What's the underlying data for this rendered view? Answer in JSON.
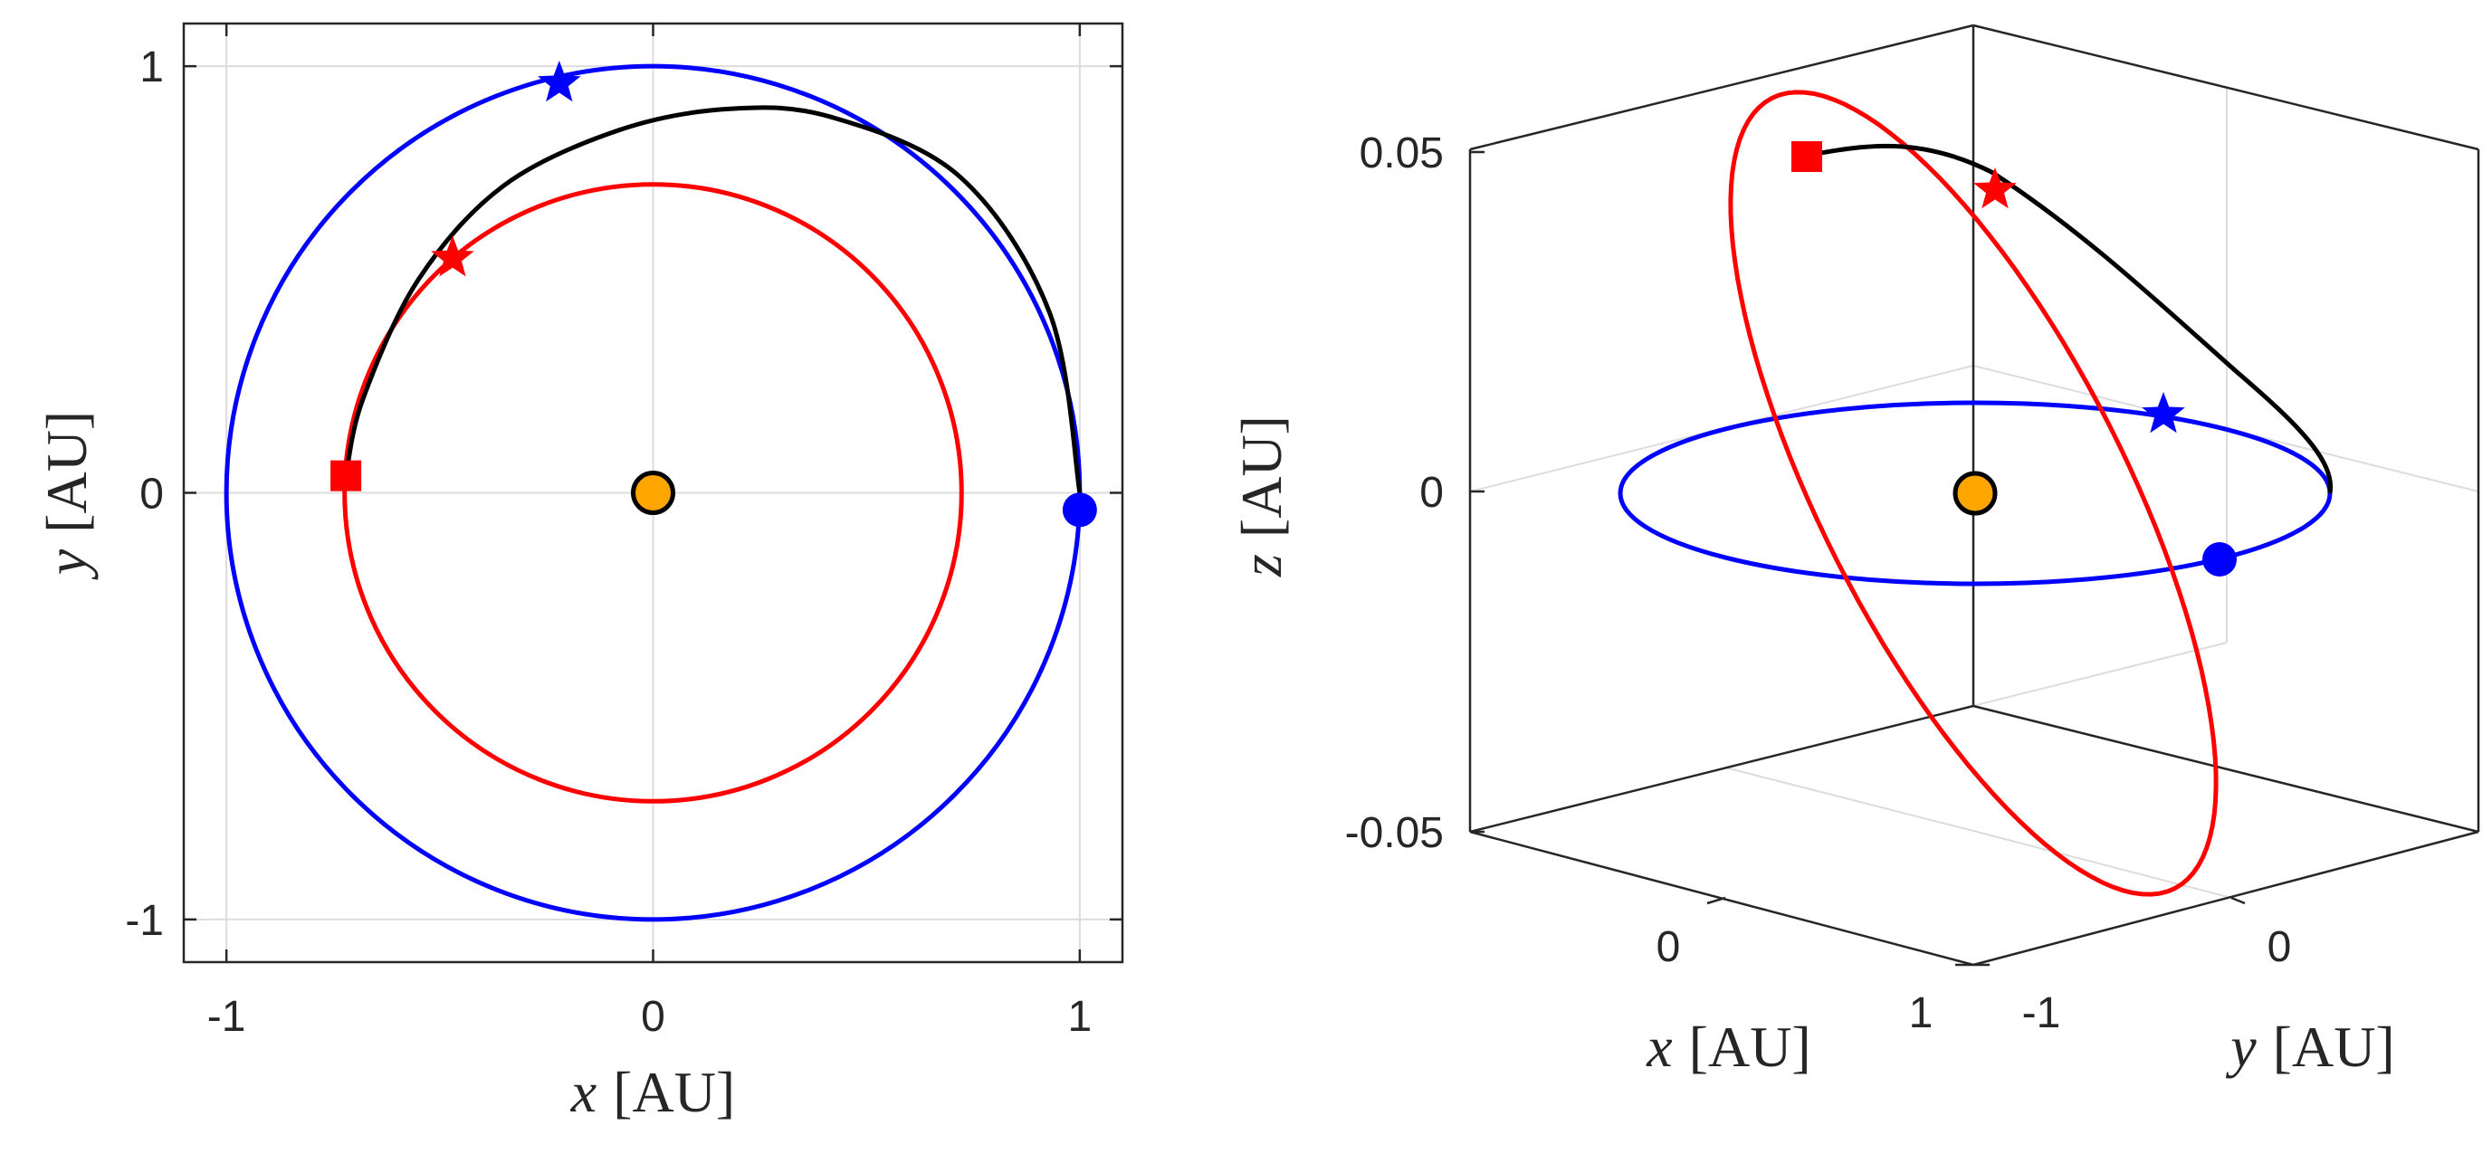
{
  "colors": {
    "earth": "#0000ff",
    "target": "#ff0000",
    "transfer": "#000000",
    "sun": "#ffa500"
  },
  "chart_data": [
    {
      "type": "line",
      "view": "2d-xy",
      "xlabel": {
        "var": "x",
        "unit": "[AU]"
      },
      "ylabel": {
        "var": "y",
        "unit": "[AU]"
      },
      "xlim": [
        -1.1,
        1.1
      ],
      "ylim": [
        -1.1,
        1.1
      ],
      "xticks": [
        {
          "value": -1,
          "label": "-1"
        },
        {
          "value": 0,
          "label": "0"
        },
        {
          "value": 1,
          "label": "1"
        }
      ],
      "yticks": [
        {
          "value": -1,
          "label": "-1"
        },
        {
          "value": 0,
          "label": "0"
        },
        {
          "value": 1,
          "label": "1"
        }
      ],
      "grid": true,
      "series": [
        {
          "role": "blue-orbit",
          "color": "#0000ff",
          "shape": "circle",
          "center": [
            0,
            0
          ],
          "radius": 1.0
        },
        {
          "role": "red-orbit",
          "color": "#ff0000",
          "shape": "circle",
          "center": [
            0,
            0
          ],
          "radius": 0.723
        },
        {
          "role": "transfer-arc",
          "color": "#000000",
          "points": [
            [
              1.0,
              0.0
            ],
            [
              0.93,
              0.42
            ],
            [
              0.72,
              0.74
            ],
            [
              0.42,
              0.88
            ],
            [
              0.18,
              0.9
            ],
            [
              -0.08,
              0.85
            ],
            [
              -0.35,
              0.72
            ],
            [
              -0.55,
              0.5
            ],
            [
              -0.68,
              0.22
            ],
            [
              -0.72,
              0.04
            ]
          ]
        }
      ],
      "markers": [
        {
          "role": "sun",
          "shape": "circle",
          "color": "#ffa500",
          "edge": "#000000",
          "x": 0,
          "y": 0
        },
        {
          "role": "blue-start",
          "shape": "circle",
          "color": "#0000ff",
          "x": 1.0,
          "y": -0.04
        },
        {
          "role": "blue-end",
          "shape": "star",
          "color": "#0000ff",
          "x": -0.22,
          "y": 0.96
        },
        {
          "role": "red-start",
          "shape": "star",
          "color": "#ff0000",
          "x": -0.47,
          "y": 0.55
        },
        {
          "role": "red-end",
          "shape": "square",
          "color": "#ff0000",
          "x": -0.72,
          "y": 0.04
        }
      ]
    },
    {
      "type": "line",
      "view": "3d",
      "xlabel": {
        "var": "x",
        "unit": "[AU]"
      },
      "ylabel": {
        "var": "y",
        "unit": "[AU]"
      },
      "zlabel": {
        "var": "z",
        "unit": "[AU]"
      },
      "xlim": [
        -1,
        1
      ],
      "ylim": [
        -1,
        1
      ],
      "zlim": [
        -0.05,
        0.05
      ],
      "xticks": [
        {
          "value": 0,
          "label": "0"
        },
        {
          "value": 1,
          "label": "1"
        }
      ],
      "yticks": [
        {
          "value": -1,
          "label": "-1"
        },
        {
          "value": 0,
          "label": "0"
        }
      ],
      "zticks": [
        {
          "value": -0.05,
          "label": "-0.05"
        },
        {
          "value": 0,
          "label": "0"
        },
        {
          "value": 0.05,
          "label": "0.05"
        }
      ],
      "grid": true,
      "series": [
        {
          "role": "blue-orbit",
          "color": "#0000ff",
          "shape": "ellipse-in-xy-plane",
          "radius": 1.0,
          "z": 0
        },
        {
          "role": "red-orbit",
          "color": "#ff0000",
          "shape": "inclined-ellipse",
          "radius": 0.723,
          "z_amplitude": 0.05
        },
        {
          "role": "transfer-arc",
          "color": "#000000"
        }
      ],
      "markers": [
        {
          "role": "sun",
          "shape": "circle",
          "color": "#ffa500",
          "edge": "#000000"
        },
        {
          "role": "blue-start",
          "shape": "circle",
          "color": "#0000ff"
        },
        {
          "role": "blue-end",
          "shape": "star",
          "color": "#0000ff"
        },
        {
          "role": "red-start",
          "shape": "star",
          "color": "#ff0000"
        },
        {
          "role": "red-end",
          "shape": "square",
          "color": "#ff0000"
        }
      ]
    }
  ]
}
